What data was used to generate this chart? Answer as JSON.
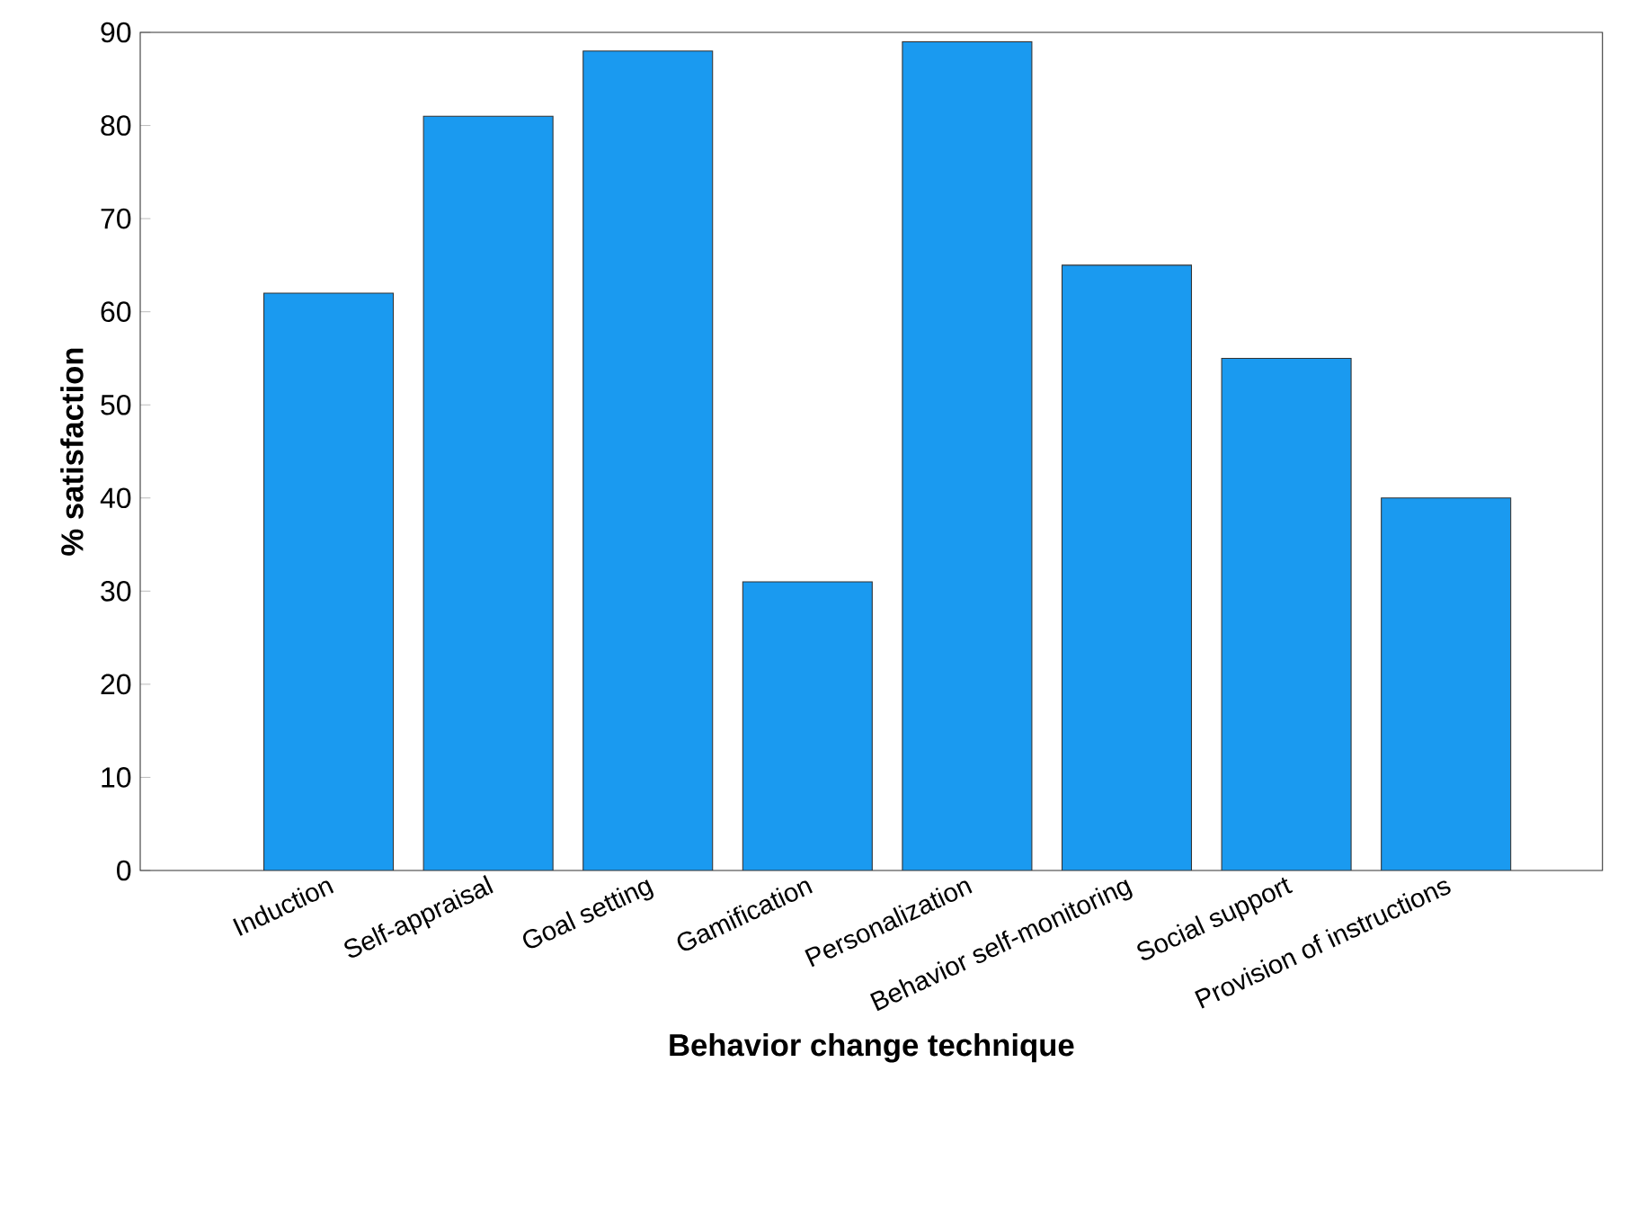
{
  "chart_data": {
    "type": "bar",
    "xlabel": "Behavior change technique",
    "ylabel": "% satisfaction",
    "categories": [
      "Induction",
      "Self-appraisal",
      "Goal setting",
      "Gamification",
      "Personalization",
      "Behavior self-monitoring",
      "Social support",
      "Provision of instructions"
    ],
    "values": [
      62,
      81,
      88,
      31,
      89,
      65,
      55,
      40
    ],
    "color": "#1a9af0",
    "ylim": [
      0,
      90
    ],
    "yticks": [
      0,
      10,
      20,
      30,
      40,
      50,
      60,
      70,
      80,
      90
    ]
  }
}
